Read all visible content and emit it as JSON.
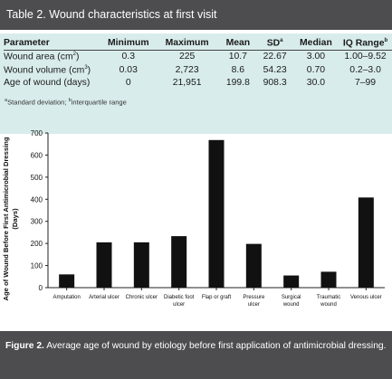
{
  "table": {
    "title": "Table 2. Wound characteristics at first visit",
    "columns": [
      "Parameter",
      "Minimum",
      "Maximum",
      "Mean",
      "SD",
      "Median",
      "IQ Range"
    ],
    "column_superscripts": {
      "SD": "a",
      "IQ Range": "b"
    },
    "rows": [
      {
        "parameter": "Wound area (cm",
        "parameter_sup": "2",
        "parameter_end": ")",
        "min": "0.3",
        "max": "225",
        "mean": "10.7",
        "sd": "22.67",
        "median": "3.00",
        "iqr": "1.00–9.52"
      },
      {
        "parameter": "Wound volume (cm",
        "parameter_sup": "3",
        "parameter_end": ")",
        "min": "0.03",
        "max": "2,723",
        "mean": "8.6",
        "sd": "54.23",
        "median": "0.70",
        "iqr": "0.2–3.0"
      },
      {
        "parameter": "Age of wound (days)",
        "parameter_sup": "",
        "parameter_end": "",
        "min": "0",
        "max": "21,951",
        "mean": "199.8",
        "sd": "908.3",
        "median": "30.0",
        "iqr": "7–99"
      }
    ],
    "footnote": {
      "a_mark": "a",
      "a_text": "Standard deviation; ",
      "b_mark": "b",
      "b_text": "interquartile range"
    }
  },
  "chart_data": {
    "type": "bar",
    "ylabel_line1": "Age of Wound Before First Antimicrobial Dressing",
    "ylabel_line2": "(Days)",
    "ylim": [
      0,
      700
    ],
    "yticks": [
      0,
      100,
      200,
      300,
      400,
      500,
      600,
      700
    ],
    "categories": [
      [
        "Amputation"
      ],
      [
        "Arterial ulcer"
      ],
      [
        "Chronic ulcer"
      ],
      [
        "Diabetic foot",
        "ulcer"
      ],
      [
        "Flap or graft"
      ],
      [
        "Pressure",
        "ulcer"
      ],
      [
        "Surgical",
        "wound"
      ],
      [
        "Traumatic",
        "wound"
      ],
      [
        "Venous ulcer"
      ]
    ],
    "values": [
      60,
      205,
      205,
      233,
      668,
      198,
      55,
      72,
      408
    ],
    "bar_color": "#111111"
  },
  "caption": {
    "label": "Figure 2.",
    "text": " Average age of wound by etiology before first application of antimicrobial dressing."
  }
}
